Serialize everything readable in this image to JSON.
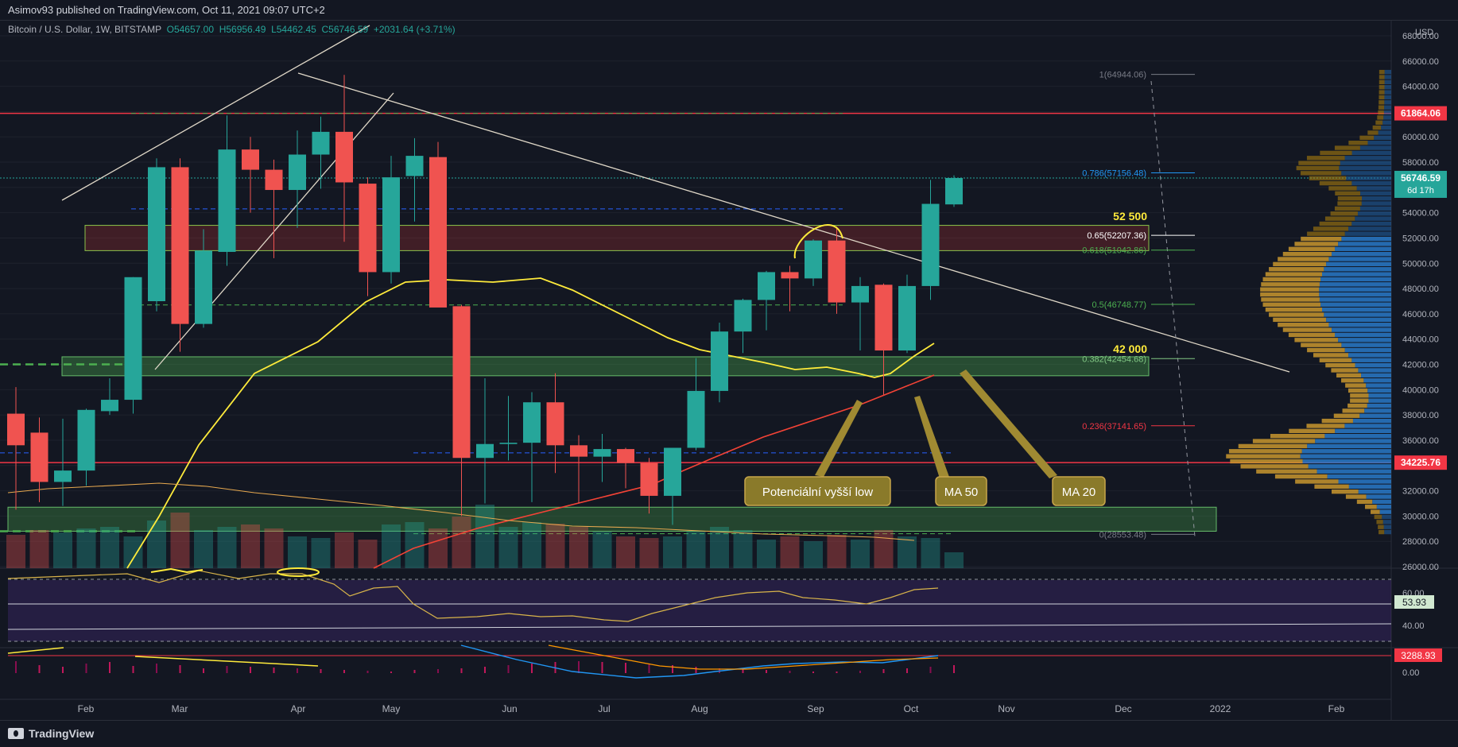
{
  "header": {
    "publisher_line": "Asimov93 published on TradingView.com, Oct 11, 2021 09:07 UTC+2",
    "symbol_line": "Bitcoin / U.S. Dollar, 1W, BITSTAMP",
    "open": "O54657.00",
    "high": "H56956.49",
    "low": "L54462.45",
    "close": "C56746.59",
    "change": "+2031.64 (+3.71%)",
    "currency": "USD"
  },
  "branding": {
    "logo_text": "TradingView"
  },
  "price_axis": {
    "ticks": [
      "68000.00",
      "66000.00",
      "64000.00",
      "62000.00",
      "60000.00",
      "58000.00",
      "56000.00",
      "54000.00",
      "52000.00",
      "50000.00",
      "48000.00",
      "46000.00",
      "44000.00",
      "42000.00",
      "40000.00",
      "38000.00",
      "36000.00",
      "34000.00",
      "32000.00",
      "30000.00",
      "28000.00",
      "26000.00"
    ],
    "badges": [
      {
        "text": "61864.06",
        "value": 61864.06,
        "color": "#f23645"
      },
      {
        "text": "56746.59",
        "value": 56746.59,
        "color": "#26a69a"
      },
      {
        "text": "34225.76",
        "value": 34225.76,
        "color": "#f23645"
      }
    ],
    "countdown": "6d 17h"
  },
  "time_axis": [
    "Feb",
    "Mar",
    "Apr",
    "May",
    "Jun",
    "Jul",
    "Aug",
    "Sep",
    "Oct",
    "Nov",
    "Dec",
    "2022",
    "Feb"
  ],
  "annotations": {
    "label_52500": "52 500",
    "label_42000": "42 000",
    "potential_low": "Potenciální vyšší low",
    "ma50": "MA 50",
    "ma20": "MA 20"
  },
  "fib_levels": [
    {
      "text": "1(64944.06)",
      "value": 64944.06,
      "color": "#787b86"
    },
    {
      "text": "0.786(57156.48)",
      "value": 57156.48,
      "color": "#2196f3"
    },
    {
      "text": "0.65(52207.36)",
      "value": 52207.36,
      "color": "#ffffff"
    },
    {
      "text": "0.618(51042.86)",
      "value": 51042.86,
      "color": "#4caf50"
    },
    {
      "text": "0.5(46748.77)",
      "value": 46748.77,
      "color": "#4caf50"
    },
    {
      "text": "0.382(42454.68)",
      "value": 42454.68,
      "color": "#81c784"
    },
    {
      "text": "0.236(37141.65)",
      "value": 37141.65,
      "color": "#f23645"
    },
    {
      "text": "0(28553.48)",
      "value": 28553.48,
      "color": "#787b86"
    }
  ],
  "rsi_panel": {
    "ticks": [
      "60.00",
      "40.00"
    ],
    "badge": "53.93",
    "badge_value": 53.93
  },
  "macd_panel": {
    "ticks": [
      "0.00"
    ],
    "badge": "3288.93"
  },
  "chart_data": {
    "type": "candlestick",
    "title": "Bitcoin / U.S. Dollar, 1W, BITSTAMP",
    "ylim": [
      26000,
      68000
    ],
    "colors": {
      "up": "#26a69a",
      "down": "#f05350",
      "ma20": "#ffeb3b",
      "ma50": "#f44336",
      "ma100": "#e6a84f"
    },
    "candles": [
      {
        "o": 38100,
        "h": 40200,
        "l": 30500,
        "c": 35600
      },
      {
        "o": 36600,
        "h": 37800,
        "l": 31100,
        "c": 32700
      },
      {
        "o": 32700,
        "h": 37700,
        "l": 30800,
        "c": 33600
      },
      {
        "o": 33600,
        "h": 38500,
        "l": 32400,
        "c": 38400
      },
      {
        "o": 38300,
        "h": 40900,
        "l": 38000,
        "c": 39200
      },
      {
        "o": 39200,
        "h": 48900,
        "l": 38100,
        "c": 48900
      },
      {
        "o": 47000,
        "h": 58300,
        "l": 46200,
        "c": 57600
      },
      {
        "o": 57600,
        "h": 58300,
        "l": 43000,
        "c": 45200
      },
      {
        "o": 45200,
        "h": 52700,
        "l": 44900,
        "c": 51000
      },
      {
        "o": 50900,
        "h": 61700,
        "l": 49800,
        "c": 59000
      },
      {
        "o": 59000,
        "h": 60000,
        "l": 54000,
        "c": 57400
      },
      {
        "o": 57400,
        "h": 58200,
        "l": 50400,
        "c": 55800
      },
      {
        "o": 55800,
        "h": 60500,
        "l": 52800,
        "c": 58600
      },
      {
        "o": 58600,
        "h": 61600,
        "l": 55900,
        "c": 60400
      },
      {
        "o": 60400,
        "h": 64900,
        "l": 51700,
        "c": 56400
      },
      {
        "o": 56300,
        "h": 56800,
        "l": 47400,
        "c": 49300
      },
      {
        "o": 49300,
        "h": 58500,
        "l": 48400,
        "c": 56800
      },
      {
        "o": 56900,
        "h": 59900,
        "l": 53300,
        "c": 58500
      },
      {
        "o": 58400,
        "h": 59600,
        "l": 46700,
        "c": 46500
      },
      {
        "o": 46600,
        "h": 46700,
        "l": 30000,
        "c": 34600
      },
      {
        "o": 34600,
        "h": 40900,
        "l": 31000,
        "c": 35700
      },
      {
        "o": 35700,
        "h": 39500,
        "l": 34400,
        "c": 35800
      },
      {
        "o": 35800,
        "h": 39800,
        "l": 31100,
        "c": 39000
      },
      {
        "o": 39000,
        "h": 41300,
        "l": 33400,
        "c": 35600
      },
      {
        "o": 35600,
        "h": 36400,
        "l": 31000,
        "c": 34700
      },
      {
        "o": 34700,
        "h": 36500,
        "l": 32700,
        "c": 35300
      },
      {
        "o": 35300,
        "h": 35400,
        "l": 32200,
        "c": 34200
      },
      {
        "o": 34200,
        "h": 34600,
        "l": 30200,
        "c": 31600
      },
      {
        "o": 31600,
        "h": 35400,
        "l": 29300,
        "c": 35400
      },
      {
        "o": 35400,
        "h": 42500,
        "l": 35200,
        "c": 39900
      },
      {
        "o": 39900,
        "h": 45300,
        "l": 39000,
        "c": 44600
      },
      {
        "o": 44600,
        "h": 47200,
        "l": 42900,
        "c": 47100
      },
      {
        "o": 47100,
        "h": 49400,
        "l": 44700,
        "c": 49300
      },
      {
        "o": 49300,
        "h": 49800,
        "l": 46200,
        "c": 48800
      },
      {
        "o": 48800,
        "h": 51900,
        "l": 48200,
        "c": 51800
      },
      {
        "o": 51800,
        "h": 52900,
        "l": 46000,
        "c": 46900
      },
      {
        "o": 46900,
        "h": 48900,
        "l": 43100,
        "c": 48200
      },
      {
        "o": 48300,
        "h": 48400,
        "l": 39600,
        "c": 43100
      },
      {
        "o": 43100,
        "h": 49100,
        "l": 42900,
        "c": 48200
      },
      {
        "o": 48200,
        "h": 56600,
        "l": 47100,
        "c": 54700
      },
      {
        "o": 54657,
        "h": 56956,
        "l": 54462,
        "c": 56746
      }
    ],
    "volume": [
      42,
      48,
      45,
      50,
      52,
      40,
      60,
      70,
      48,
      52,
      55,
      50,
      40,
      38,
      45,
      36,
      55,
      58,
      50,
      65,
      80,
      52,
      58,
      56,
      52,
      46,
      40,
      38,
      40,
      46,
      52,
      48,
      36,
      40,
      34,
      42,
      36,
      48,
      40,
      38,
      20
    ]
  }
}
